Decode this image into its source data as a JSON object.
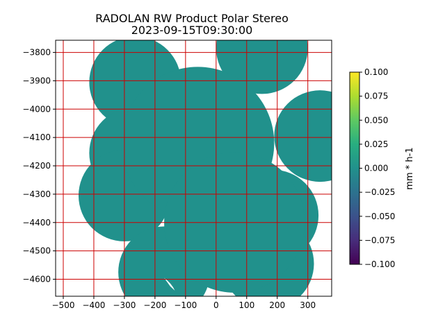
{
  "chart_data": {
    "type": "heatmap",
    "title": "RADOLAN RW Product Polar Stereo",
    "subtitle": "2023-09-15T09:30:00",
    "xlabel": "",
    "ylabel": "",
    "xlim": [
      -525,
      378
    ],
    "ylim": [
      -4660,
      -3757
    ],
    "xticks": [
      -500,
      -400,
      -300,
      -200,
      -100,
      0,
      100,
      200,
      300
    ],
    "yticks": [
      -3800,
      -3900,
      -4000,
      -4100,
      -4200,
      -4300,
      -4400,
      -4500,
      -4600
    ],
    "xtick_labels": [
      "−500",
      "−400",
      "−300",
      "−200",
      "−100",
      "0",
      "100",
      "200",
      "300"
    ],
    "ytick_labels": [
      "−3800",
      "−3900",
      "−4000",
      "−4100",
      "−4200",
      "−4300",
      "−4400",
      "−4500",
      "−4600"
    ],
    "grid": true,
    "grid_color": "#cc0000",
    "field_value": 0.0,
    "field_color": "#21918c",
    "colormap": "viridis",
    "colorbar": {
      "label": "mm * h-1",
      "range": [
        -0.1,
        0.1
      ],
      "ticks": [
        0.1,
        0.075,
        0.05,
        0.025,
        0.0,
        -0.025,
        -0.05,
        -0.075,
        -0.1
      ],
      "tick_labels": [
        "0.100",
        "0.075",
        "0.050",
        "0.025",
        "0.000",
        "−0.025",
        "−0.050",
        "−0.075",
        "−0.100"
      ]
    },
    "coverage_circles": [
      {
        "cx": -265,
        "cy": -3905,
        "r": 150
      },
      {
        "cx": 150,
        "cy": -3785,
        "r": 150
      },
      {
        "cx": 340,
        "cy": -4095,
        "r": 150
      },
      {
        "cx": -265,
        "cy": -4155,
        "r": 150
      },
      {
        "cx": -300,
        "cy": -4305,
        "r": 150
      },
      {
        "cx": 185,
        "cy": -4375,
        "r": 150
      },
      {
        "cx": 170,
        "cy": -4545,
        "r": 150
      },
      {
        "cx": -170,
        "cy": -4575,
        "r": 150
      },
      {
        "cx": -60,
        "cy": -4120,
        "r": 250
      },
      {
        "cx": 60,
        "cy": -4400,
        "r": 230
      }
    ]
  }
}
